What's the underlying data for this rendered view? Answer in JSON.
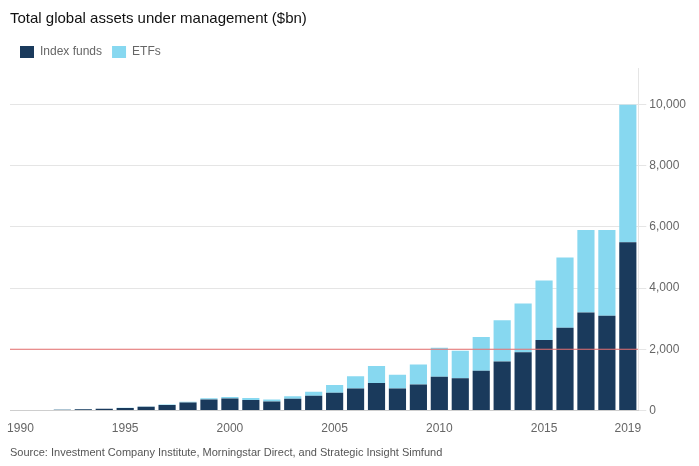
{
  "chart_data": {
    "type": "bar",
    "title": "Total global assets under management ($bn)",
    "source": "Source: Investment Company Institute, Morningstar Direct, and Strategic Insight Simfund",
    "categories": [
      "1990",
      null,
      null,
      null,
      null,
      "1995",
      null,
      null,
      null,
      null,
      "2000",
      null,
      null,
      null,
      null,
      "2005",
      null,
      null,
      null,
      null,
      "2010",
      null,
      null,
      null,
      null,
      "2015",
      null,
      null,
      null,
      "2019"
    ],
    "series": [
      {
        "name": "Index funds",
        "color": "#1a3a5c",
        "values": [
          10,
          15,
          25,
          40,
          55,
          80,
          120,
          180,
          260,
          360,
          390,
          340,
          290,
          380,
          480,
          580,
          720,
          900,
          720,
          850,
          1100,
          1050,
          1300,
          1600,
          1900,
          2300,
          2700,
          3200,
          3100,
          5500
        ]
      },
      {
        "name": "ETFs",
        "color": "#87d8f0",
        "values": [
          0,
          0,
          1,
          2,
          3,
          5,
          8,
          15,
          25,
          35,
          50,
          65,
          65,
          85,
          130,
          250,
          400,
          550,
          450,
          650,
          950,
          900,
          1100,
          1350,
          1600,
          1950,
          2300,
          2700,
          2800,
          4500
        ]
      }
    ],
    "stacked": true,
    "ylim": [
      0,
      11200
    ],
    "yticks": [
      0,
      {
        "value": 2000,
        "label": "2,000"
      },
      {
        "value": 4000,
        "label": "4,000"
      },
      {
        "value": 6000,
        "label": "6,000"
      },
      {
        "value": 8000,
        "label": "8,000"
      },
      {
        "value": 10000,
        "label": "10,000"
      }
    ],
    "grid": true,
    "legend": "upper left",
    "reference_line": {
      "value": 2000,
      "color": "#e87070"
    }
  }
}
